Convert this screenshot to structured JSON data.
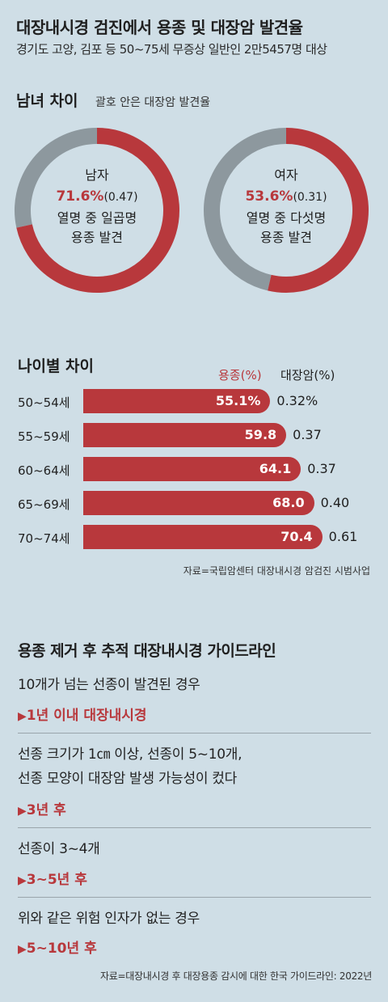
{
  "header": {
    "title": "대장내시경 검진에서 용종 및 대장암 발견율",
    "subtitle": "경기도 고양, 김포 등 50~75세 무증상 일반인 2만5457명 대상"
  },
  "gender_section": {
    "title": "남녀 차이",
    "note": "괄호 안은 대장암 발견율"
  },
  "age_section": {
    "title": "나이별 차이",
    "col_polyp": "용종(%)",
    "col_cancer": "대장암(%)",
    "source": "자료=국립암센터 대장내시경 암검진 시범사업"
  },
  "guideline": {
    "title": "용종 제거 후 추적 대장내시경 가이드라인",
    "items": [
      {
        "text1": "10개가 넘는 선종이 발견된 경우",
        "text2": "",
        "result": "1년 이내 대장내시경"
      },
      {
        "text1": "선종 크기가 1㎝ 이상, 선종이 5~10개,",
        "text2": "선종 모양이 대장암 발생 가능성이 컸다",
        "result": "3년 후"
      },
      {
        "text1": "선종이 3~4개",
        "text2": "",
        "result": "3~5년 후"
      },
      {
        "text1": "위와 같은 위험 인자가 없는 경우",
        "text2": "",
        "result": "5~10년 후"
      }
    ],
    "arrow": "▶",
    "source": "자료=대장내시경 후 대장용종 감시에 대한 한국 가이드라인: 2022년"
  },
  "colors": {
    "accent": "#b8383c",
    "gray": "#8d989e",
    "background": "#cfdee6",
    "inner": "#cfdee6"
  },
  "chart_data": [
    {
      "type": "pie",
      "title": "남녀 차이",
      "slices": [
        {
          "name": "남자",
          "polyp_rate": 71.6,
          "polyp_label": "71.6%",
          "cancer_label": "(0.47)",
          "caption1": "열명 중 일곱명",
          "caption2": "용종 발견"
        },
        {
          "name": "여자",
          "polyp_rate": 53.6,
          "polyp_label": "53.6%",
          "cancer_label": "(0.31)",
          "caption1": "열명 중 다섯명",
          "caption2": "용종 발견"
        }
      ]
    },
    {
      "type": "bar",
      "title": "나이별 차이",
      "categories": [
        "50~54세",
        "55~59세",
        "60~64세",
        "65~69세",
        "70~74세"
      ],
      "series": [
        {
          "name": "용종(%)",
          "values": [
            55.1,
            59.8,
            64.1,
            68.0,
            70.4
          ],
          "labels": [
            "55.1%",
            "59.8",
            "64.1",
            "68.0",
            "70.4"
          ]
        },
        {
          "name": "대장암(%)",
          "values": [
            0.32,
            0.37,
            0.37,
            0.4,
            0.61
          ],
          "labels": [
            "0.32%",
            "0.37",
            "0.37",
            "0.40",
            "0.61"
          ]
        }
      ]
    }
  ]
}
